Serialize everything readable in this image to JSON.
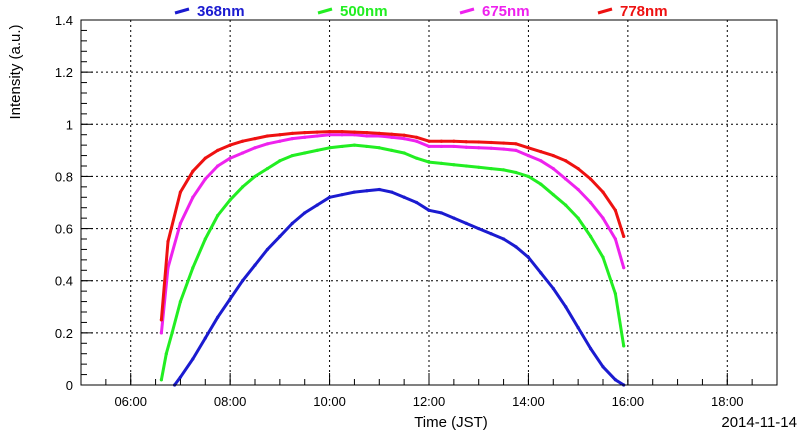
{
  "chart_data": {
    "type": "line",
    "xlabel": "Time (JST)",
    "ylabel": "Intensity (a.u.)",
    "date_label": "2014-11-14",
    "xlim": [
      "05:00",
      "19:00"
    ],
    "ylim": [
      0,
      1.4
    ],
    "x_tick_labels": [
      "06:00",
      "08:00",
      "10:00",
      "12:00",
      "14:00",
      "16:00",
      "18:00"
    ],
    "y_tick_labels": [
      "0",
      "0.2",
      "0.4",
      "0.6",
      "0.8",
      "1",
      "1.2",
      "1.4"
    ],
    "grid": true,
    "legend_position": "top",
    "series": [
      {
        "name": "368nm",
        "color": "#1b1bd0",
        "x": [
          "06:53",
          "07:00",
          "07:15",
          "07:30",
          "07:45",
          "08:00",
          "08:15",
          "08:30",
          "08:45",
          "09:00",
          "09:15",
          "09:30",
          "09:45",
          "10:00",
          "10:15",
          "10:30",
          "10:45",
          "11:00",
          "11:15",
          "11:30",
          "11:45",
          "12:00",
          "12:15",
          "12:30",
          "12:45",
          "13:00",
          "13:15",
          "13:30",
          "13:45",
          "14:00",
          "14:15",
          "14:30",
          "14:45",
          "15:00",
          "15:15",
          "15:30",
          "15:45",
          "15:55"
        ],
        "y": [
          0.0,
          0.03,
          0.1,
          0.18,
          0.26,
          0.33,
          0.4,
          0.46,
          0.52,
          0.57,
          0.62,
          0.66,
          0.69,
          0.72,
          0.73,
          0.74,
          0.745,
          0.75,
          0.74,
          0.72,
          0.7,
          0.67,
          0.66,
          0.64,
          0.62,
          0.6,
          0.58,
          0.56,
          0.53,
          0.49,
          0.43,
          0.37,
          0.3,
          0.22,
          0.14,
          0.07,
          0.02,
          0.0
        ]
      },
      {
        "name": "500nm",
        "color": "#22ee22",
        "x": [
          "06:37",
          "06:43",
          "06:50",
          "07:00",
          "07:15",
          "07:30",
          "07:45",
          "08:00",
          "08:15",
          "08:30",
          "08:45",
          "09:00",
          "09:15",
          "09:30",
          "09:45",
          "10:00",
          "10:15",
          "10:30",
          "10:45",
          "11:00",
          "11:15",
          "11:30",
          "11:45",
          "12:00",
          "12:15",
          "12:30",
          "12:45",
          "13:00",
          "13:15",
          "13:30",
          "13:45",
          "14:00",
          "14:15",
          "14:30",
          "14:45",
          "15:00",
          "15:15",
          "15:30",
          "15:45",
          "15:55"
        ],
        "y": [
          0.02,
          0.12,
          0.2,
          0.32,
          0.45,
          0.56,
          0.65,
          0.71,
          0.76,
          0.8,
          0.83,
          0.86,
          0.88,
          0.89,
          0.9,
          0.91,
          0.915,
          0.92,
          0.915,
          0.91,
          0.9,
          0.89,
          0.87,
          0.855,
          0.85,
          0.845,
          0.84,
          0.835,
          0.83,
          0.825,
          0.815,
          0.8,
          0.77,
          0.73,
          0.69,
          0.64,
          0.57,
          0.49,
          0.35,
          0.15
        ]
      },
      {
        "name": "675nm",
        "color": "#ee22ee",
        "x": [
          "06:37",
          "06:45",
          "07:00",
          "07:15",
          "07:30",
          "07:45",
          "08:00",
          "08:15",
          "08:30",
          "08:45",
          "09:00",
          "09:15",
          "09:30",
          "09:45",
          "10:00",
          "10:15",
          "10:30",
          "10:45",
          "11:00",
          "11:15",
          "11:30",
          "11:45",
          "12:00",
          "12:15",
          "12:30",
          "12:45",
          "13:00",
          "13:15",
          "13:30",
          "13:45",
          "14:00",
          "14:15",
          "14:30",
          "14:45",
          "15:00",
          "15:15",
          "15:30",
          "15:45",
          "15:55"
        ],
        "y": [
          0.2,
          0.45,
          0.62,
          0.72,
          0.79,
          0.84,
          0.87,
          0.89,
          0.91,
          0.925,
          0.935,
          0.945,
          0.95,
          0.955,
          0.96,
          0.96,
          0.96,
          0.955,
          0.955,
          0.95,
          0.945,
          0.935,
          0.915,
          0.915,
          0.915,
          0.912,
          0.91,
          0.908,
          0.905,
          0.9,
          0.88,
          0.86,
          0.83,
          0.79,
          0.75,
          0.7,
          0.64,
          0.56,
          0.45
        ]
      },
      {
        "name": "778nm",
        "color": "#ee1111",
        "x": [
          "06:37",
          "06:45",
          "07:00",
          "07:15",
          "07:30",
          "07:45",
          "08:00",
          "08:15",
          "08:30",
          "08:45",
          "09:00",
          "09:15",
          "09:30",
          "09:45",
          "10:00",
          "10:15",
          "10:30",
          "10:45",
          "11:00",
          "11:15",
          "11:30",
          "11:45",
          "12:00",
          "12:15",
          "12:30",
          "12:45",
          "13:00",
          "13:15",
          "13:30",
          "13:45",
          "14:00",
          "14:15",
          "14:30",
          "14:45",
          "15:00",
          "15:15",
          "15:30",
          "15:45",
          "15:55"
        ],
        "y": [
          0.25,
          0.55,
          0.74,
          0.82,
          0.87,
          0.9,
          0.92,
          0.935,
          0.945,
          0.955,
          0.96,
          0.965,
          0.968,
          0.97,
          0.972,
          0.972,
          0.97,
          0.968,
          0.965,
          0.962,
          0.958,
          0.95,
          0.935,
          0.935,
          0.935,
          0.933,
          0.932,
          0.93,
          0.928,
          0.925,
          0.91,
          0.895,
          0.88,
          0.86,
          0.83,
          0.79,
          0.74,
          0.67,
          0.57
        ]
      }
    ]
  }
}
